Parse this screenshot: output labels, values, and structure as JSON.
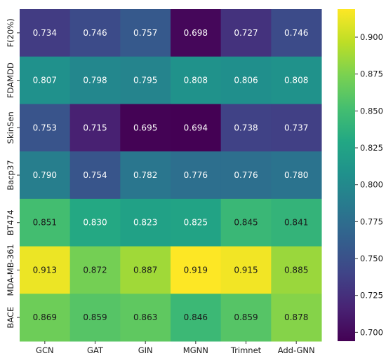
{
  "chart_data": {
    "type": "heatmap",
    "title": "",
    "xlabel": "",
    "ylabel": "",
    "columns": [
      "GCN",
      "GAT",
      "GIN",
      "MGNN",
      "Trimnet",
      "Add-GNN"
    ],
    "rows": [
      "F(20%)",
      "FDAMDD",
      "SkinSen",
      "Bacp37",
      "BT474",
      "MDA-MB-361",
      "BACE"
    ],
    "values": [
      [
        0.734,
        0.746,
        0.757,
        0.698,
        0.727,
        0.746
      ],
      [
        0.807,
        0.798,
        0.795,
        0.808,
        0.806,
        0.808
      ],
      [
        0.753,
        0.715,
        0.695,
        0.694,
        0.738,
        0.737
      ],
      [
        0.79,
        0.754,
        0.782,
        0.776,
        0.776,
        0.78
      ],
      [
        0.851,
        0.83,
        0.823,
        0.825,
        0.845,
        0.841
      ],
      [
        0.913,
        0.872,
        0.887,
        0.919,
        0.915,
        0.885
      ],
      [
        0.869,
        0.859,
        0.863,
        0.846,
        0.859,
        0.878
      ]
    ],
    "value_labels": [
      [
        "0.734",
        "0.746",
        "0.757",
        "0.698",
        "0.727",
        "0.746"
      ],
      [
        "0.807",
        "0.798",
        "0.795",
        "0.808",
        "0.806",
        "0.808"
      ],
      [
        "0.753",
        "0.715",
        "0.695",
        "0.694",
        "0.738",
        "0.737"
      ],
      [
        "0.790",
        "0.754",
        "0.782",
        "0.776",
        "0.776",
        "0.780"
      ],
      [
        "0.851",
        "0.830",
        "0.823",
        "0.825",
        "0.845",
        "0.841"
      ],
      [
        "0.913",
        "0.872",
        "0.887",
        "0.919",
        "0.915",
        "0.885"
      ],
      [
        "0.869",
        "0.859",
        "0.863",
        "0.846",
        "0.859",
        "0.878"
      ]
    ],
    "colormap": "viridis",
    "color_range": [
      0.694,
      0.919
    ],
    "colorbar": {
      "ticks": [
        0.7,
        0.725,
        0.75,
        0.775,
        0.8,
        0.825,
        0.85,
        0.875,
        0.9
      ],
      "tick_labels": [
        "0.700",
        "0.725",
        "0.750",
        "0.775",
        "0.800",
        "0.825",
        "0.850",
        "0.875",
        "0.900"
      ],
      "placement": "right"
    },
    "grid": false
  }
}
